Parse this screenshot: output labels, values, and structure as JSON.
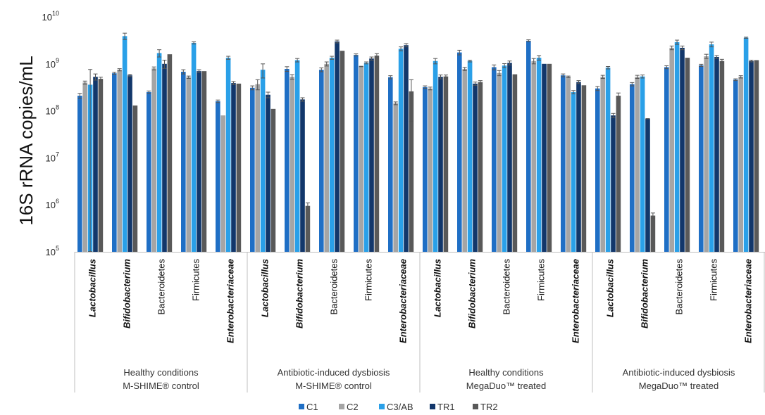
{
  "chart_data": {
    "type": "bar",
    "ylabel": "16S rRNA copies/mL",
    "yscale": "log",
    "ylim": [
      100000,
      10000000000
    ],
    "yticks": [
      {
        "value": 100000,
        "base": "10",
        "exp": "5"
      },
      {
        "value": 1000000,
        "base": "10",
        "exp": "6"
      },
      {
        "value": 10000000,
        "base": "10",
        "exp": "7"
      },
      {
        "value": 100000000,
        "base": "10",
        "exp": "8"
      },
      {
        "value": 1000000000,
        "base": "10",
        "exp": "9"
      },
      {
        "value": 10000000000,
        "base": "10",
        "exp": "10"
      }
    ],
    "groups": [
      {
        "line1": "Healthy conditions",
        "line2": "M-SHIME® control"
      },
      {
        "line1": "Antibiotic-induced dysbiosis",
        "line2": "M-SHIME® control"
      },
      {
        "line1": "Healthy conditions",
        "line2": "MegaDuo™ treated"
      },
      {
        "line1": "Antibiotic-induced dysbiosis",
        "line2": "MegaDuo™ treated"
      }
    ],
    "categories": [
      {
        "label": "Lactobacillus",
        "italic": true
      },
      {
        "label": "Bifidobacterium",
        "italic": true
      },
      {
        "label": "Bacteroidetes",
        "italic": false
      },
      {
        "label": "Firmicutes",
        "italic": false
      },
      {
        "label": "Enterobacteriaceae",
        "italic": true
      }
    ],
    "series": [
      {
        "name": "C1",
        "color": "#1f6fc5"
      },
      {
        "name": "C2",
        "color": "#a5a5a5"
      },
      {
        "name": "C3/AB",
        "color": "#2aa0e8"
      },
      {
        "name": "TR1",
        "color": "#12376b"
      },
      {
        "name": "TR2",
        "color": "#595959"
      }
    ],
    "values": [
      [
        [
          210000000.0,
          400000000.0,
          360000000.0,
          530000000.0,
          480000000.0
        ],
        [
          630000000.0,
          750000000.0,
          3900000000.0,
          570000000.0,
          130000000.0
        ],
        [
          250000000.0,
          800000000.0,
          1700000000.0,
          1000000000.0,
          1600000000.0
        ],
        [
          680000000.0,
          520000000.0,
          2800000000.0,
          700000000.0,
          700000000.0
        ],
        [
          160000000.0,
          80000000.0,
          1350000000.0,
          390000000.0,
          380000000.0
        ]
      ],
      [
        [
          310000000.0,
          370000000.0,
          750000000.0,
          220000000.0,
          110000000.0
        ],
        [
          780000000.0,
          530000000.0,
          1200000000.0,
          175000000.0,
          950000.0
        ],
        [
          750000000.0,
          1000000000.0,
          1350000000.0,
          3000000000.0,
          1900000000.0
        ],
        [
          1550000000.0,
          880000000.0,
          1050000000.0,
          1300000000.0,
          1500000000.0
        ],
        [
          520000000.0,
          145000000.0,
          2100000000.0,
          2500000000.0,
          260000000.0
        ]
      ],
      [
        [
          320000000.0,
          300000000.0,
          1150000000.0,
          530000000.0,
          540000000.0
        ],
        [
          1750000000.0,
          780000000.0,
          1150000000.0,
          380000000.0,
          410000000.0
        ],
        [
          850000000.0,
          640000000.0,
          920000000.0,
          1050000000.0,
          600000000.0
        ],
        [
          3100000000.0,
          1150000000.0,
          1350000000.0,
          1000000000.0,
          1000000000.0
        ],
        [
          570000000.0,
          530000000.0,
          250000000.0,
          410000000.0,
          350000000.0
        ]
      ],
      [
        [
          300000000.0,
          530000000.0,
          830000000.0,
          80000000.0,
          210000000.0
        ],
        [
          370000000.0,
          530000000.0,
          540000000.0,
          68000000.0,
          590000.0
        ],
        [
          850000000.0,
          2200000000.0,
          2900000000.0,
          2200000000.0,
          1350000000.0
        ],
        [
          930000000.0,
          1450000000.0,
          2600000000.0,
          1400000000.0,
          1150000000.0
        ],
        [
          460000000.0,
          530000000.0,
          3600000000.0,
          1150000000.0,
          1200000000.0
        ]
      ]
    ],
    "errors": [
      [
        [
          25000000.0,
          30000000.0,
          400000000.0,
          80000000.0,
          40000000.0
        ],
        [
          30000000.0,
          40000000.0,
          600000000.0,
          30000000.0,
          0.0
        ],
        [
          15000000.0,
          60000000.0,
          300000000.0,
          200000000.0,
          0.0
        ],
        [
          70000000.0,
          30000000.0,
          150000000.0,
          50000000.0,
          0.0
        ],
        [
          10000000.0,
          0.0,
          100000000.0,
          30000000.0,
          0.0
        ]
      ],
      [
        [
          30000000.0,
          90000000.0,
          250000000.0,
          30000000.0,
          0.0
        ],
        [
          90000000.0,
          60000000.0,
          100000000.0,
          15000000.0,
          150000.0
        ],
        [
          70000000.0,
          100000000.0,
          100000000.0,
          200000000.0,
          0.0
        ],
        [
          80000000.0,
          10000000.0,
          50000000.0,
          100000000.0,
          150000000.0
        ],
        [
          40000000.0,
          10000000.0,
          200000000.0,
          200000000.0,
          200000000.0
        ]
      ],
      [
        [
          20000000.0,
          20000000.0,
          150000000.0,
          50000000.0,
          40000000.0
        ],
        [
          200000000.0,
          60000000.0,
          50000000.0,
          30000000.0,
          30000000.0
        ],
        [
          100000000.0,
          80000000.0,
          90000000.0,
          100000000.0,
          0.0
        ],
        [
          150000000.0,
          150000000.0,
          150000000.0,
          0.0,
          0.0
        ],
        [
          40000000.0,
          20000000.0,
          20000000.0,
          30000000.0,
          0.0
        ]
      ],
      [
        [
          30000000.0,
          40000000.0,
          50000000.0,
          8000000.0,
          30000000.0
        ],
        [
          30000000.0,
          40000000.0,
          40000000.0,
          500000.0,
          80000.0
        ],
        [
          60000000.0,
          200000000.0,
          300000000.0,
          200000000.0,
          0.0
        ],
        [
          50000000.0,
          150000000.0,
          300000000.0,
          100000000.0,
          100000000.0
        ],
        [
          20000000.0,
          30000000.0,
          100000000.0,
          50000000.0,
          0.0
        ]
      ]
    ],
    "legend_position": "bottom",
    "grid": false
  }
}
